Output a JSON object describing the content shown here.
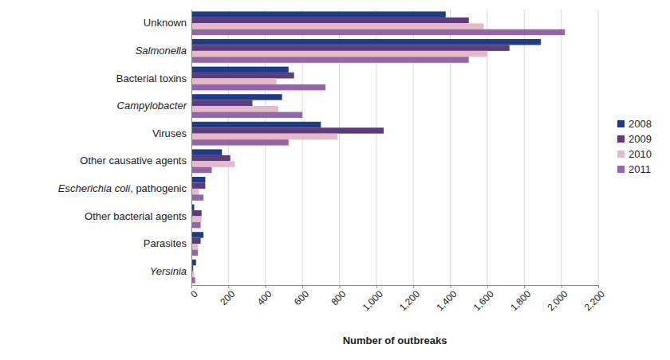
{
  "chart_data": {
    "type": "bar",
    "orientation": "horizontal",
    "grid": true,
    "legend": "right",
    "x_label": "Number of outbreaks",
    "categories": [
      "Unknown",
      "Salmonella",
      "Bacterial toxins",
      "Campylobacter",
      "Viruses",
      "Other causative agents",
      "Escherichia coli, pathogenic",
      "Other bacterial agents",
      "Parasites",
      "Yersinia"
    ],
    "series": [
      {
        "name": "2008",
        "color": "#1f3b87",
        "values": [
          1375,
          1890,
          525,
          490,
          700,
          165,
          75,
          15,
          65,
          25
        ]
      },
      {
        "name": "2009",
        "color": "#5e3c7c",
        "values": [
          1500,
          1720,
          555,
          330,
          1040,
          210,
          75,
          55,
          50,
          10
        ]
      },
      {
        "name": "2010",
        "color": "#e6b9c8",
        "values": [
          1580,
          1600,
          460,
          470,
          790,
          235,
          40,
          55,
          35,
          15
        ]
      },
      {
        "name": "2011",
        "color": "#9266a9",
        "values": [
          2020,
          1500,
          725,
          600,
          525,
          110,
          65,
          50,
          35,
          20
        ]
      }
    ],
    "xlim": [
      0,
      2200
    ],
    "xticks": [
      0,
      200,
      400,
      600,
      800,
      {
        "value": 1000,
        "label": "1,000"
      },
      {
        "value": 1200,
        "label": "1,200"
      },
      {
        "value": 1400,
        "label": "1,400"
      },
      {
        "value": 1600,
        "label": "1,600"
      },
      {
        "value": 1800,
        "label": "1,800"
      },
      {
        "value": 2000,
        "label": "2,000"
      },
      {
        "value": 2200,
        "label": "2,200"
      }
    ]
  }
}
